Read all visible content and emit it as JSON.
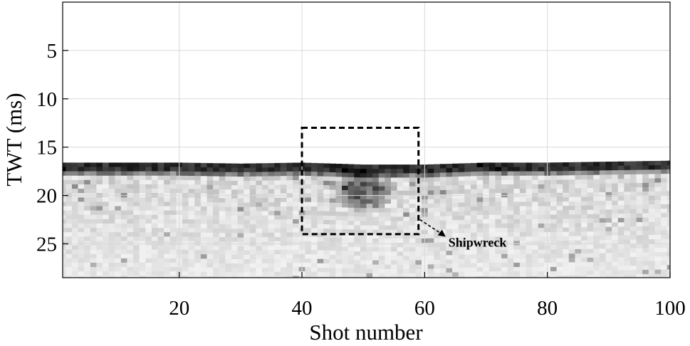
{
  "chart_data": {
    "type": "heatmap",
    "title": "",
    "xlabel": "Shot number",
    "ylabel": "TWT (ms)",
    "xlim": [
      1,
      100
    ],
    "ylim": [
      28.5,
      0
    ],
    "x_ticks": [
      20,
      40,
      60,
      80,
      100
    ],
    "y_ticks": [
      5,
      10,
      15,
      20,
      25
    ],
    "x_tick_labels": [
      "20",
      "40",
      "60",
      "80",
      "100"
    ],
    "y_tick_labels": [
      "5",
      "10",
      "15",
      "20",
      "25"
    ],
    "grid": true,
    "colormap": "grayscale (dark = strong reflection)",
    "seafloor_twt_ms": {
      "shots": [
        1,
        10,
        20,
        30,
        40,
        50,
        60,
        70,
        80,
        90,
        100
      ],
      "values": [
        16.6,
        16.6,
        16.6,
        16.7,
        16.6,
        16.8,
        16.8,
        16.6,
        16.6,
        16.5,
        16.4
      ]
    },
    "annotation": {
      "label": "Shipwreck",
      "box_x": [
        40,
        59
      ],
      "box_twt_ms": [
        13,
        24
      ],
      "arrow_to": "right-bottom of box"
    }
  }
}
